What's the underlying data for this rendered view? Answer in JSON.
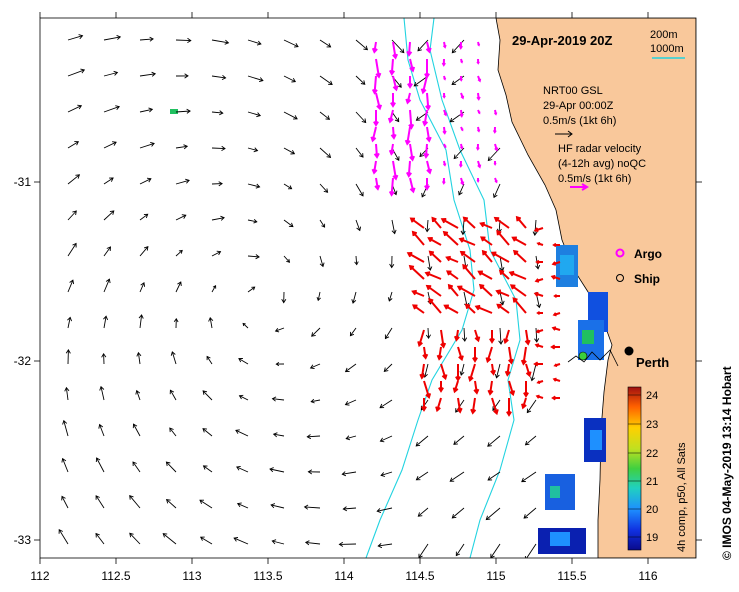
{
  "map": {
    "title": "29-Apr-2019 20Z",
    "x_ticks": [
      "112",
      "112.5",
      "113",
      "113.5",
      "114",
      "114.5",
      "115",
      "115.5",
      "116"
    ],
    "y_ticks": [
      "-31",
      "-32",
      "-33"
    ],
    "x_range": [
      112,
      116.3
    ],
    "y_range": [
      -33.1,
      -30.1
    ],
    "credit": "© IMOS 04-May-2019 13:14 Hobart"
  },
  "legend": {
    "isobath_200": "200m",
    "isobath_1000": "1000m",
    "model_line1": "NRT00 GSL",
    "model_line2": "29-Apr 00:00Z",
    "model_line3": "0.5m/s (1kt 6h)",
    "radar_line1": "HF radar velocity",
    "radar_line2": "(4-12h avg) noQC",
    "radar_line3": "0.5m/s (1kt 6h)",
    "argo": "Argo",
    "ship": "Ship"
  },
  "place": {
    "name": "Perth",
    "lon": 115.86,
    "lat": -31.95
  },
  "colorbar": {
    "label": "4h comp, p50, All Sats",
    "ticks": [
      "24",
      "23",
      "22",
      "21",
      "20",
      "19"
    ],
    "min": 18.5,
    "max": 24.3
  },
  "colors": {
    "land": "#f9c89b",
    "isobath": "#22d3e0",
    "radar_north": "#ff00ff",
    "radar_south": "#ee0000",
    "model": "#000000",
    "argo": "#ff00ff"
  }
}
